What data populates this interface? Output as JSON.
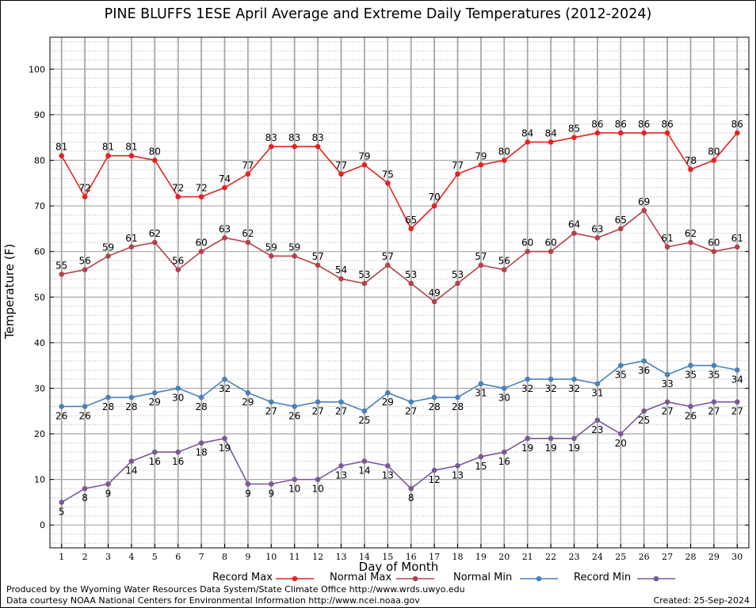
{
  "chart_data": {
    "type": "line",
    "title": "PINE BLUFFS 1ESE April Average and Extreme Daily Temperatures (2012-2024)",
    "xlabel": "Day of Month",
    "ylabel": "Temperature (F)",
    "x": [
      1,
      2,
      3,
      4,
      5,
      6,
      7,
      8,
      9,
      10,
      11,
      12,
      13,
      14,
      15,
      16,
      17,
      18,
      19,
      20,
      21,
      22,
      23,
      24,
      25,
      26,
      27,
      28,
      29,
      30
    ],
    "xlim": [
      0.5,
      30.5
    ],
    "ylim": [
      -5,
      107
    ],
    "yticks": [
      0,
      10,
      20,
      30,
      40,
      50,
      60,
      70,
      80,
      90,
      100
    ],
    "grid": true,
    "legend_position": "bottom",
    "series": [
      {
        "name": "Record Max",
        "color": "#e8211f",
        "label_pos": "above",
        "values": [
          81,
          72,
          81,
          81,
          80,
          72,
          72,
          74,
          77,
          83,
          83,
          83,
          77,
          79,
          75,
          65,
          70,
          77,
          79,
          80,
          84,
          84,
          85,
          86,
          86,
          86,
          86,
          78,
          80,
          86
        ]
      },
      {
        "name": "Normal Max",
        "color": "#b5414b",
        "label_pos": "above",
        "values": [
          55,
          56,
          59,
          61,
          62,
          56,
          60,
          63,
          62,
          59,
          59,
          57,
          54,
          53,
          57,
          53,
          49,
          53,
          57,
          56,
          60,
          60,
          64,
          63,
          65,
          69,
          61,
          62,
          60,
          61
        ]
      },
      {
        "name": "Normal Min",
        "color": "#4b80b8",
        "label_pos": "below",
        "values": [
          26,
          26,
          28,
          28,
          29,
          30,
          28,
          32,
          29,
          27,
          26,
          27,
          27,
          25,
          29,
          27,
          28,
          28,
          31,
          30,
          32,
          32,
          32,
          31,
          35,
          36,
          33,
          35,
          35,
          34
        ]
      },
      {
        "name": "Record Min",
        "color": "#7b5899",
        "label_pos": "below",
        "values": [
          5,
          8,
          9,
          14,
          16,
          16,
          18,
          19,
          9,
          9,
          10,
          10,
          13,
          14,
          13,
          8,
          12,
          13,
          15,
          16,
          19,
          19,
          19,
          23,
          20,
          25,
          27,
          26,
          27,
          27
        ]
      }
    ]
  },
  "footer": {
    "credit_1": "Produced by the Wyoming Water Resources Data System/State Climate Office http://www.wrds.uwyo.edu",
    "credit_2": "Data courtesy NOAA National Centers for Environmental Information http://www.ncei.noaa.gov",
    "created": "Created:  25-Sep-2024"
  }
}
